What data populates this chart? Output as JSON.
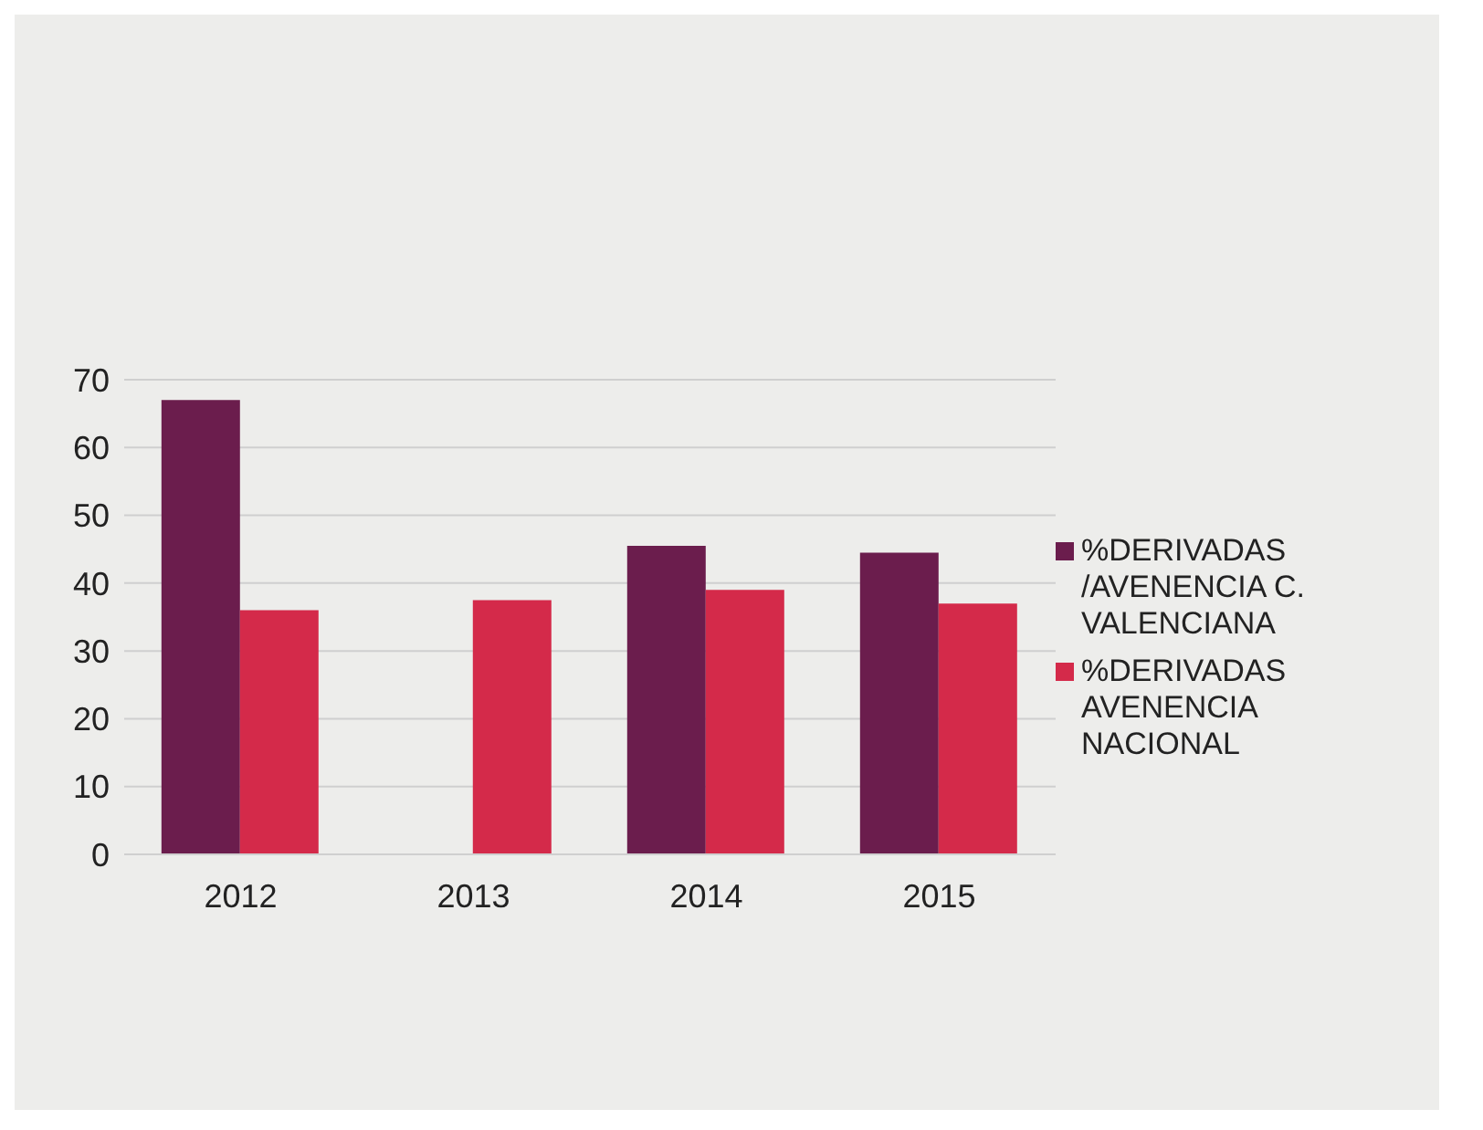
{
  "chart_data": {
    "type": "bar",
    "categories": [
      "2012",
      "2013",
      "2014",
      "2015"
    ],
    "series": [
      {
        "name": "%DERIVADAS /AVENENCIA C. VALENCIANA",
        "color": "#6b1d4d",
        "values": [
          67,
          null,
          45.5,
          44.5
        ]
      },
      {
        "name": "%DERIVADAS AVENENCIA NACIONAL",
        "color": "#d42a4a",
        "values": [
          36,
          37.5,
          39,
          37
        ]
      }
    ],
    "ylim": [
      0,
      70
    ],
    "yticks": [
      0,
      10,
      20,
      30,
      40,
      50,
      60,
      70
    ],
    "grid": "y",
    "legend": "right"
  }
}
